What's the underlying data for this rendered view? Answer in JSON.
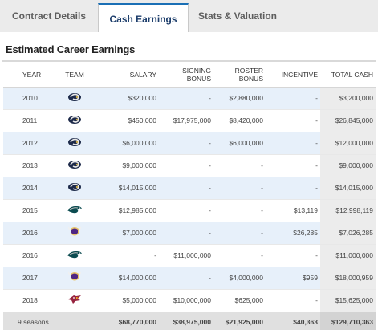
{
  "tabs": [
    {
      "label": "Contract Details"
    },
    {
      "label": "Cash Earnings"
    },
    {
      "label": "Stats & Valuation"
    }
  ],
  "section_title": "Estimated Career Earnings",
  "headers": {
    "year": "YEAR",
    "team": "TEAM",
    "salary": "SALARY",
    "signing_l1": "SIGNING",
    "signing_l2": "BONUS",
    "roster_l1": "ROSTER",
    "roster_l2": "BONUS",
    "incentive": "INCENTIVE",
    "total": "TOTAL CASH"
  },
  "rows": [
    {
      "year": "2010",
      "team_icon": "rams-logo-icon",
      "salary": "$320,000",
      "signing": "-",
      "roster": "$2,880,000",
      "incentive": "-",
      "total": "$3,200,000"
    },
    {
      "year": "2011",
      "team_icon": "rams-logo-icon",
      "salary": "$450,000",
      "signing": "$17,975,000",
      "roster": "$8,420,000",
      "incentive": "-",
      "total": "$26,845,000"
    },
    {
      "year": "2012",
      "team_icon": "rams-logo-icon",
      "salary": "$6,000,000",
      "signing": "-",
      "roster": "$6,000,000",
      "incentive": "-",
      "total": "$12,000,000"
    },
    {
      "year": "2013",
      "team_icon": "rams-logo-icon",
      "salary": "$9,000,000",
      "signing": "-",
      "roster": "-",
      "incentive": "-",
      "total": "$9,000,000"
    },
    {
      "year": "2014",
      "team_icon": "rams-logo-icon",
      "salary": "$14,015,000",
      "signing": "-",
      "roster": "-",
      "incentive": "-",
      "total": "$14,015,000"
    },
    {
      "year": "2015",
      "team_icon": "eagles-logo-icon",
      "salary": "$12,985,000",
      "signing": "-",
      "roster": "-",
      "incentive": "$13,119",
      "total": "$12,998,119"
    },
    {
      "year": "2016",
      "team_icon": "vikings-logo-icon",
      "salary": "$7,000,000",
      "signing": "-",
      "roster": "-",
      "incentive": "$26,285",
      "total": "$7,026,285"
    },
    {
      "year": "2016",
      "team_icon": "eagles-logo-icon",
      "salary": "-",
      "signing": "$11,000,000",
      "roster": "-",
      "incentive": "-",
      "total": "$11,000,000"
    },
    {
      "year": "2017",
      "team_icon": "vikings-logo-icon",
      "salary": "$14,000,000",
      "signing": "-",
      "roster": "$4,000,000",
      "incentive": "$959",
      "total": "$18,000,959"
    },
    {
      "year": "2018",
      "team_icon": "cardinals-logo-icon",
      "salary": "$5,000,000",
      "signing": "$10,000,000",
      "roster": "$625,000",
      "incentive": "-",
      "total": "$15,625,000"
    }
  ],
  "summary": {
    "seasons": "9 seasons",
    "salary": "$68,770,000",
    "signing": "$38,975,000",
    "roster": "$21,925,000",
    "incentive": "$40,363",
    "total": "$129,710,363"
  },
  "colors": {
    "active_tab_accent": "#1a6fb5",
    "row_shade": "#e7f0fa",
    "total_column": "#ececec"
  }
}
